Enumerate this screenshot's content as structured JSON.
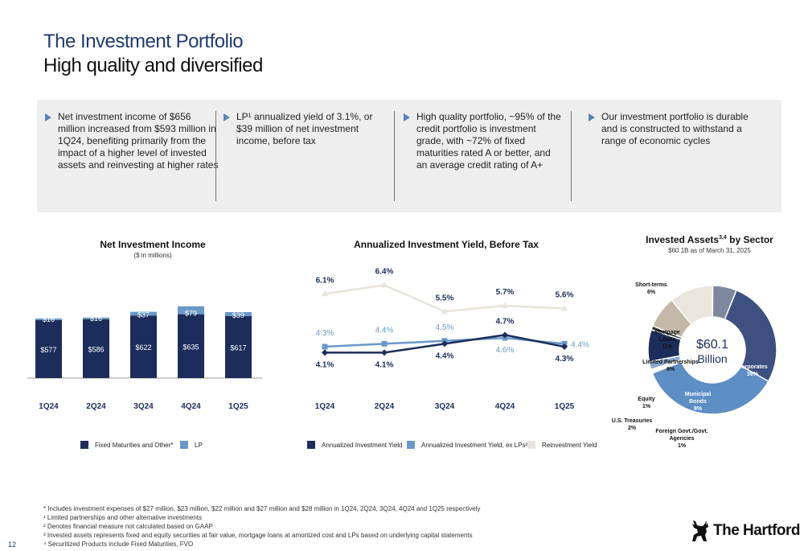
{
  "title": {
    "line1": "The Investment Portfolio",
    "line2": "High quality and diversified"
  },
  "bullets": [
    "Net investment income of $656 million increased from $593 million in 1Q24, benefiting primarily from the impact of a higher level of invested assets and reinvesting at higher rates",
    "LP¹ annualized yield of 3.1%, or $39 million of net investment income, before tax",
    "High quality portfolio, ~95% of the credit portfolio is investment grade, with ~72% of fixed maturities rated A or better, and an average credit rating of A+",
    "Our investment portfolio is durable and is constructed to withstand a range of economic cycles"
  ],
  "chart_data": [
    {
      "type": "bar",
      "title": "Net Investment Income",
      "subtitle": "($ in millions)",
      "categories": [
        "1Q24",
        "2Q24",
        "3Q24",
        "4Q24",
        "1Q25"
      ],
      "series": [
        {
          "name": "Fixed Maturities and Other*",
          "values": [
            577,
            586,
            622,
            635,
            617
          ],
          "labels": [
            "$577",
            "$586",
            "$622",
            "$635",
            "$617"
          ],
          "color": "#1c2d5c"
        },
        {
          "name": "LP",
          "values": [
            16,
            16,
            37,
            79,
            39
          ],
          "labels": [
            "$16",
            "$16",
            "$37",
            "$79",
            "$39"
          ],
          "color": "#6a98c8"
        }
      ],
      "stacked": true
    },
    {
      "type": "line",
      "title": "Annualized Investment Yield, Before Tax",
      "categories": [
        "1Q24",
        "2Q24",
        "3Q24",
        "4Q24",
        "1Q25"
      ],
      "series": [
        {
          "name": "Annualized Investment Yield",
          "values": [
            4.1,
            4.1,
            4.4,
            4.7,
            4.3
          ],
          "labels": [
            "4.1%",
            "4.1%",
            "4.4%",
            "4.7%",
            "4.3%"
          ],
          "color": "#1c2d5c",
          "marker": "diamond"
        },
        {
          "name": "Annualized Investment Yield, ex LPs²",
          "values": [
            4.3,
            4.4,
            4.5,
            4.6,
            4.4
          ],
          "labels": [
            "4.3%",
            "4.4%",
            "4.5%",
            "4.6%",
            "4.4%"
          ],
          "color": "#6a98c8",
          "marker": "square"
        },
        {
          "name": "Reinvestment Yield",
          "values": [
            6.1,
            6.4,
            5.5,
            5.7,
            5.6
          ],
          "labels": [
            "6.1%",
            "6.4%",
            "5.5%",
            "5.7%",
            "5.6%"
          ],
          "color": "#e8e4dc",
          "marker": "triangle"
        }
      ]
    },
    {
      "type": "pie",
      "title": "Invested Assets",
      "title_sup": "3,4",
      "title_suffix": " by Sector",
      "subtitle": "$60.1B as of March 31, 2025",
      "center_label_1": "$60.1",
      "center_label_2": "Billion",
      "slices": [
        {
          "label": "Securitized Products",
          "value": 27,
          "pct": "27%",
          "color": "#3d5080"
        },
        {
          "label": "Corporates",
          "value": 36,
          "pct": "36%",
          "color": "#5d8ec4"
        },
        {
          "label": "Foreign Govt./Govt. Agencies",
          "value": 1,
          "pct": "1%",
          "color": "#ffffff"
        },
        {
          "label": "U.S. Treasuries",
          "value": 2,
          "pct": "2%",
          "color": "#8aa8d0"
        },
        {
          "label": "Municipal Bonds",
          "value": 8,
          "pct": "8%",
          "color": "#1c2d5c"
        },
        {
          "label": "Equity",
          "value": 1,
          "pct": "1%",
          "color": "#333333"
        },
        {
          "label": "Limited Partnerships",
          "value": 8,
          "pct": "8%",
          "color": "#c4b9a8"
        },
        {
          "label": "Mortgage Loans",
          "value": 11,
          "pct": "11%",
          "color": "#eae6de"
        },
        {
          "label": "Short-terms",
          "value": 6,
          "pct": "6%",
          "color": "#7d889e"
        }
      ]
    }
  ],
  "footnotes": [
    "* Includes investment expenses of $27 million, $23 million, $22 million and $27 million and $28 million in 1Q24, 2Q24, 3Q24, 4Q24 and 1Q25 respectively",
    "¹ Limited partnerships and other alternative investments",
    "² Denotes financial measure not calculated based on GAAP",
    "³ Invested assets represents fixed and equity securities at fair value, mortgage loans at amortized cost and LPs based on underlying capital statements",
    "⁴ Securitized Products include Fixed Maturities, FVO"
  ],
  "page_number": "12",
  "logo_text": "The Hartford",
  "logo_icon": "stag-icon"
}
